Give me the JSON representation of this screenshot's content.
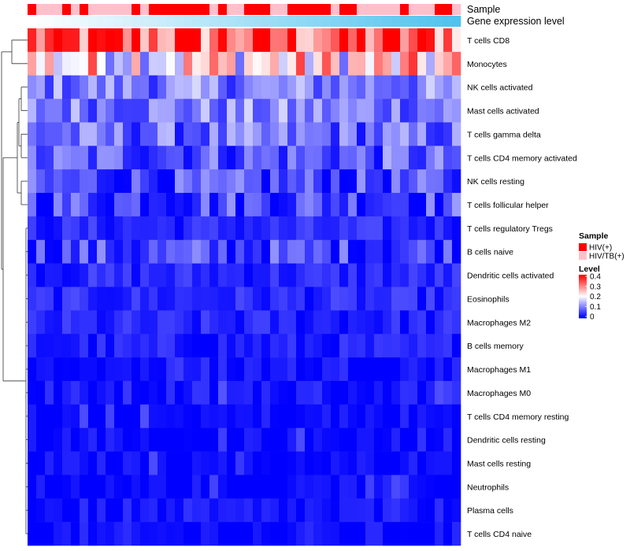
{
  "chart_data": {
    "type": "heatmap",
    "title": "",
    "annotation_tracks": [
      {
        "name": "Sample",
        "colors": {
          "HIV(+)": "#ff0000",
          "HIV/TB(+)": "#ffc0cb"
        },
        "values": [
          "HIV(+)",
          "HIV/TB(+)",
          "HIV/TB(+)",
          "HIV/TB(+)",
          "HIV(+)",
          "HIV/TB(+)",
          "HIV(+)",
          "HIV/TB(+)",
          "HIV/TB(+)",
          "HIV/TB(+)",
          "HIV/TB(+)",
          "HIV/TB(+)",
          "HIV(+)",
          "HIV/TB(+)",
          "HIV(+)",
          "HIV(+)",
          "HIV(+)",
          "HIV(+)",
          "HIV(+)",
          "HIV(+)",
          "HIV(+)",
          "HIV/TB(+)",
          "HIV(+)",
          "HIV/TB(+)",
          "HIV/TB(+)",
          "HIV(+)",
          "HIV(+)",
          "HIV(+)",
          "HIV/TB(+)",
          "HIV/TB(+)",
          "HIV(+)",
          "HIV(+)",
          "HIV(+)",
          "HIV(+)",
          "HIV(+)",
          "HIV/TB(+)",
          "HIV(+)",
          "HIV(+)",
          "HIV/TB(+)",
          "HIV/TB(+)",
          "HIV/TB(+)",
          "HIV/TB(+)",
          "HIV/TB(+)",
          "HIV(+)",
          "HIV/TB(+)",
          "HIV/TB(+)",
          "HIV/TB(+)",
          "HIV(+)",
          "HIV(+)",
          "HIV/TB(+)"
        ]
      },
      {
        "name": "Gene expression level",
        "gradient": [
          "#ffffff",
          "#4fc3ee"
        ]
      }
    ],
    "columns": 50,
    "rows": [
      "T cells CD8",
      "Monocytes",
      "NK cells activated",
      "Mast cells activated",
      "T cells gamma delta",
      "T cells CD4 memory activated",
      "NK cells resting",
      "T cells follicular helper",
      "T cells regulatory  Tregs",
      "B cells naive",
      "Dendritic cells activated",
      "Eosinophils",
      "Macrophages M2",
      "B cells memory",
      "Macrophages M1",
      "Macrophages M0",
      "T cells CD4 memory resting",
      "Dendritic cells resting",
      "Mast cells resting",
      "Neutrophils",
      "Plasma cells",
      "T cells CD4 naive"
    ],
    "row_levels": [
      0.33,
      0.22,
      0.1,
      0.1,
      0.08,
      0.07,
      0.05,
      0.06,
      0.03,
      0.05,
      0.03,
      0.03,
      0.025,
      0.02,
      0.015,
      0.015,
      0.005,
      0.005,
      0.002,
      0.0,
      0.01,
      0.005
    ],
    "value_range": [
      0,
      0.4
    ],
    "color_scale": {
      "low": "#0000ff",
      "mid": "#ffffff",
      "high": "#ff0000",
      "midpoint": 0.2
    },
    "legend": {
      "sample_title": "Sample",
      "sample_entries": [
        "HIV(+)",
        "HIV/TB(+)"
      ],
      "level_title": "Level",
      "level_ticks": [
        "0.4",
        "0.3",
        "0.2",
        "0.1",
        "0"
      ],
      "placement": "right"
    }
  }
}
